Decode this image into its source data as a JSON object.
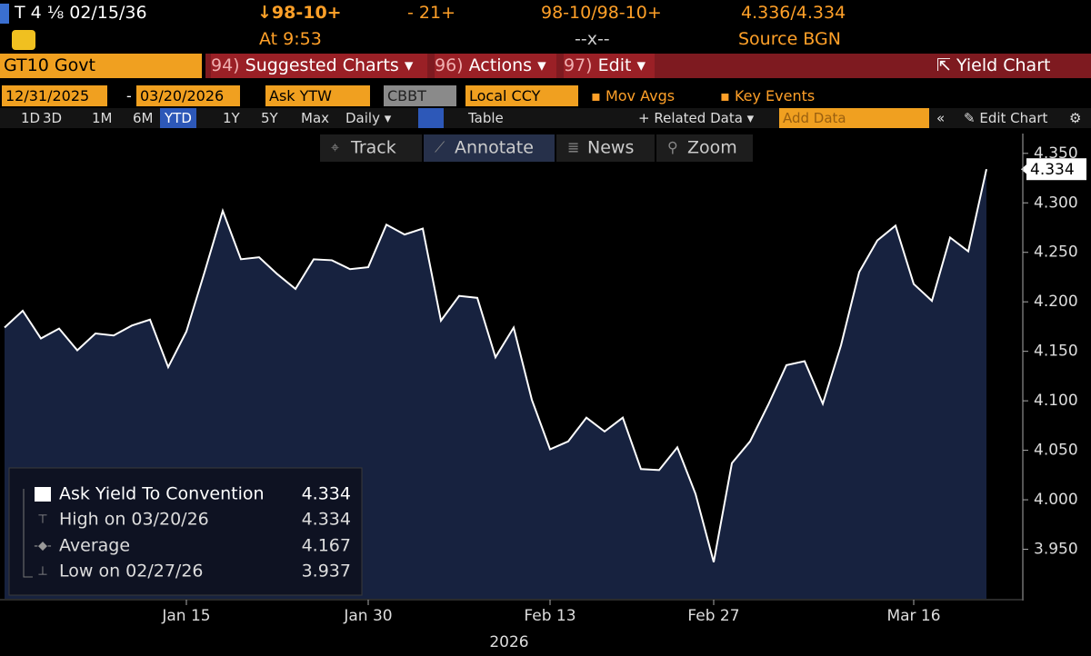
{
  "header": {
    "security": "T 4 ⅛ 02/15/36",
    "price": "↓98-10+",
    "change": "- 21+",
    "bid_ask": "98-10/98-10+",
    "yield_bid_ask": "4.336/4.334",
    "time": "At 9:53",
    "spread": "--x--",
    "source": "Source BGN"
  },
  "menu": {
    "ticker": "GT10 Govt",
    "items": [
      {
        "code": "94)",
        "label": "Suggested Charts ▾"
      },
      {
        "code": "96)",
        "label": "Actions ▾"
      },
      {
        "code": "97)",
        "label": "Edit ▾"
      }
    ],
    "title": "Yield Chart"
  },
  "controls": {
    "start_date": "12/31/2025",
    "separator": "-",
    "end_date": "03/20/2026",
    "field": "Ask YTW",
    "pricing_source": "CBBT",
    "currency": "Local CCY",
    "toggles": [
      "Mov Avgs",
      "Key Events"
    ]
  },
  "toolbar": {
    "periods": [
      "1D",
      "3D",
      "1M",
      "6M",
      "YTD",
      "1Y",
      "5Y",
      "Max"
    ],
    "frequency": "Daily ▾",
    "table": "Table",
    "related": "+ Related Data ▾",
    "add_data": "Add Data",
    "edit_chart": "Edit Chart"
  },
  "chart_tools": [
    "Track",
    "Annotate",
    "News",
    "Zoom"
  ],
  "chart_data": {
    "type": "area",
    "categories": [
      null,
      null,
      null,
      null,
      null,
      null,
      null,
      null,
      null,
      null,
      "Jan 15",
      null,
      null,
      null,
      null,
      null,
      null,
      null,
      null,
      null,
      "Jan 30",
      null,
      null,
      null,
      null,
      null,
      null,
      null,
      null,
      null,
      "Feb 13",
      null,
      null,
      null,
      null,
      null,
      null,
      null,
      null,
      "Feb 27",
      null,
      null,
      null,
      null,
      null,
      null,
      null,
      null,
      null,
      null,
      "Mar 16",
      null,
      null,
      null,
      null
    ],
    "x_label": "2026",
    "series": [
      {
        "name": "Ask Yield To Convention",
        "color": "#ffffff",
        "fill": "#17223f",
        "values": [
          4.174,
          4.191,
          4.163,
          4.173,
          4.151,
          4.168,
          4.166,
          4.176,
          4.182,
          4.134,
          4.17,
          4.23,
          4.292,
          4.243,
          4.245,
          4.228,
          4.213,
          4.243,
          4.242,
          4.233,
          4.235,
          4.278,
          4.268,
          4.274,
          4.181,
          4.206,
          4.204,
          4.144,
          4.174,
          4.101,
          4.051,
          4.059,
          4.083,
          4.069,
          4.083,
          4.031,
          4.03,
          4.053,
          4.006,
          3.937,
          4.037,
          4.059,
          4.096,
          4.136,
          4.14,
          4.097,
          4.156,
          4.23,
          4.262,
          4.277,
          4.218,
          4.201,
          4.265,
          4.251,
          4.334
        ]
      }
    ],
    "stats": [
      {
        "label": "High on 03/20/26",
        "value": 4.334
      },
      {
        "label": "Average",
        "value": 4.167
      },
      {
        "label": "Low on 02/27/26",
        "value": 3.937
      }
    ],
    "ylim": [
      3.9,
      4.37
    ],
    "yticks": [
      {
        "value": 3.95,
        "label": "3.950"
      },
      {
        "value": 4.0,
        "label": "4.000"
      },
      {
        "value": 4.05,
        "label": "4.050"
      },
      {
        "value": 4.1,
        "label": "4.100"
      },
      {
        "value": 4.15,
        "label": "4.150"
      },
      {
        "value": 4.2,
        "label": "4.200"
      },
      {
        "value": 4.25,
        "label": "4.250"
      },
      {
        "value": 4.3,
        "label": "4.300"
      },
      {
        "value": 4.35,
        "label": "4.350"
      }
    ]
  }
}
